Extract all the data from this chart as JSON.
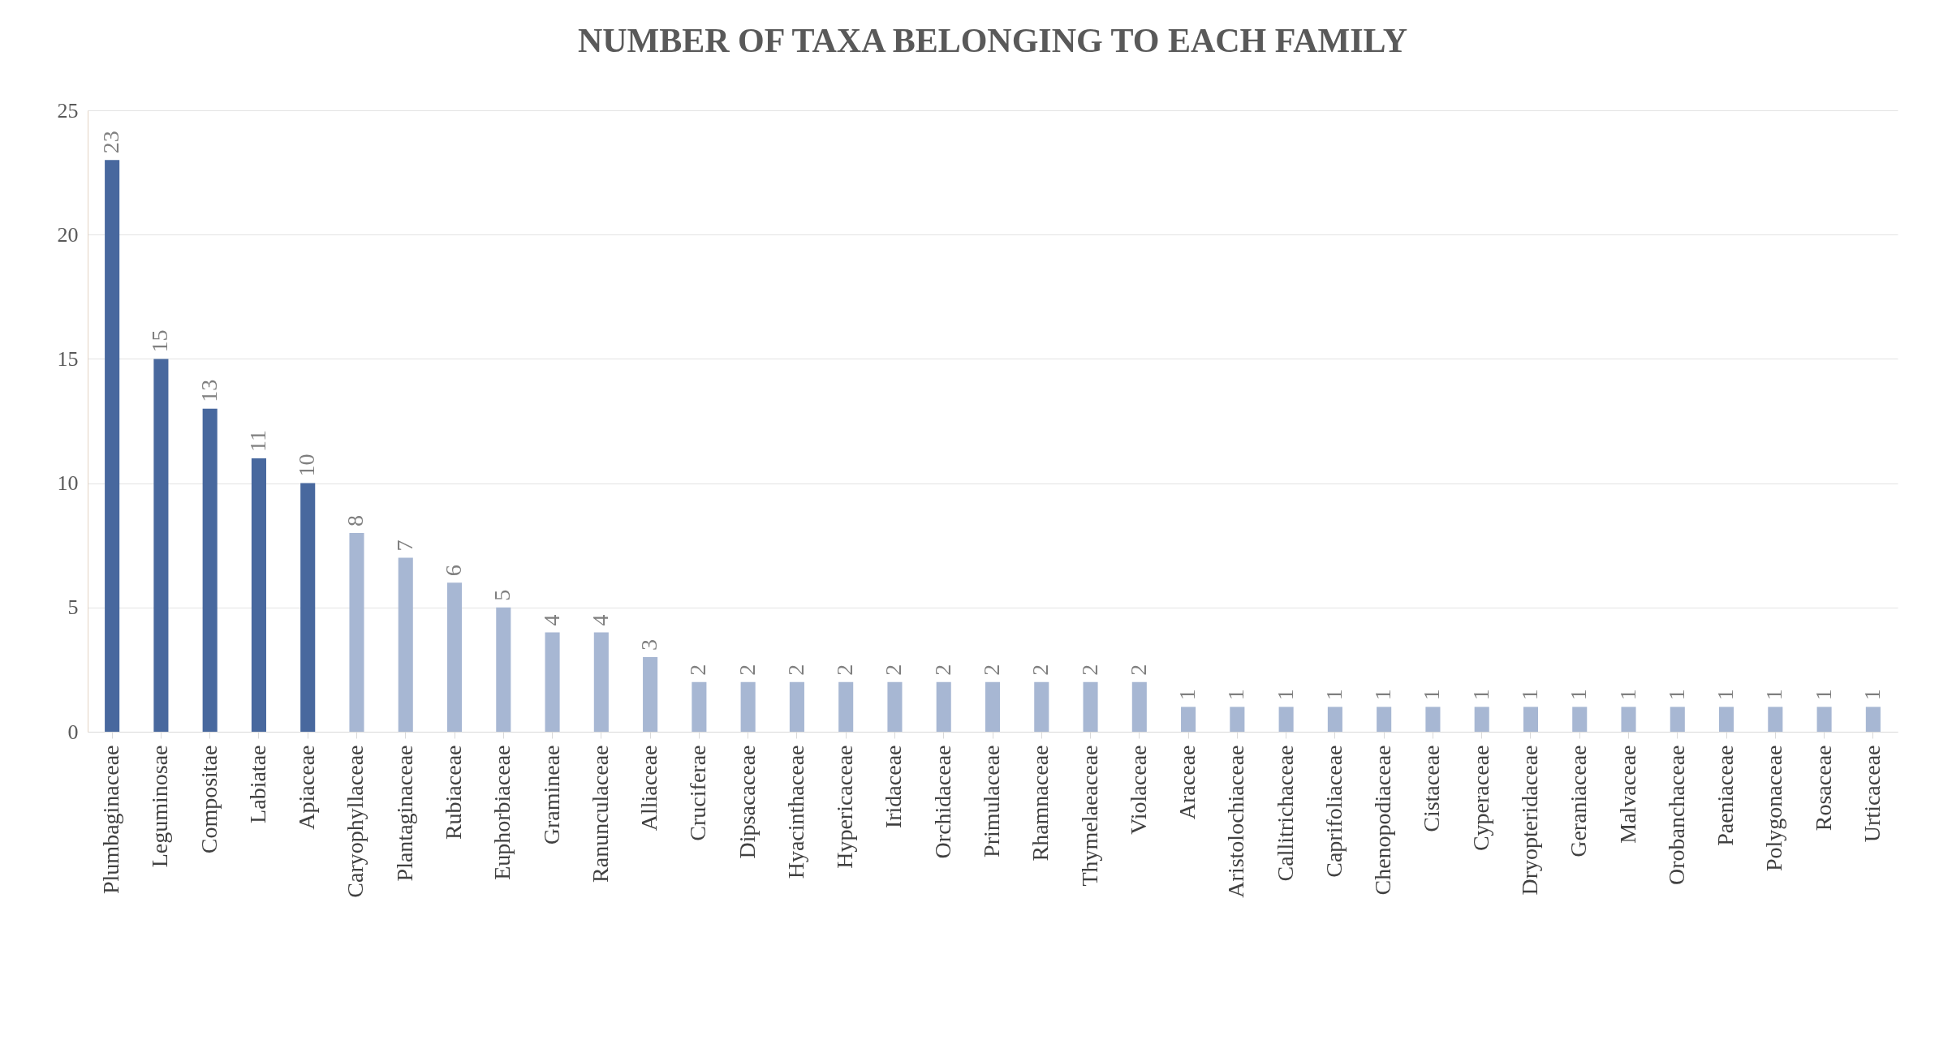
{
  "chart_data": {
    "type": "bar",
    "title": "NUMBER OF TAXA BELONGING TO EACH FAMILY",
    "categories": [
      "Plumbaginaceae",
      "Leguminosae",
      "Compositae",
      "Labiatae",
      "Apiaceae",
      "Caryophyllaceae",
      "Plantaginaceae",
      "Rubiaceae",
      "Euphorbiaceae",
      "Gramineae",
      "Ranunculaceae",
      "Alliaceae",
      "Cruciferae",
      "Dipsacaceae",
      "Hyacinthaceae",
      "Hypericaceae",
      "Iridaceae",
      "Orchidaceae",
      "Primulaceae",
      "Rhamnaceae",
      "Thymelaeaceae",
      "Violaceae",
      "Araceae",
      "Aristolochiaceae",
      "Callitrichaceae",
      "Caprifoliaceae",
      "Chenopodiaceae",
      "Cistaceae",
      "Cyperaceae",
      "Dryopteridaceae",
      "Geraniaceae",
      "Malvaceae",
      "Orobanchaceae",
      "Paeniaceae",
      "Polygonaceae",
      "Rosaceae",
      "Urticaceae"
    ],
    "values": [
      23,
      15,
      13,
      11,
      10,
      8,
      7,
      6,
      5,
      4,
      4,
      3,
      2,
      2,
      2,
      2,
      2,
      2,
      2,
      2,
      2,
      2,
      1,
      1,
      1,
      1,
      1,
      1,
      1,
      1,
      1,
      1,
      1,
      1,
      1,
      1,
      1
    ],
    "colors": [
      "#48689e",
      "#48689e",
      "#48689e",
      "#48689e",
      "#48689e",
      "#a7b7d3",
      "#a7b7d3",
      "#a7b7d3",
      "#a7b7d3",
      "#a7b7d3",
      "#a7b7d3",
      "#a7b7d3",
      "#a7b7d3",
      "#a7b7d3",
      "#a7b7d3",
      "#a7b7d3",
      "#a7b7d3",
      "#a7b7d3",
      "#a7b7d3",
      "#a7b7d3",
      "#a7b7d3",
      "#a7b7d3",
      "#a7b7d3",
      "#a7b7d3",
      "#a7b7d3",
      "#a7b7d3",
      "#a7b7d3",
      "#a7b7d3",
      "#a7b7d3",
      "#a7b7d3",
      "#a7b7d3",
      "#a7b7d3",
      "#a7b7d3",
      "#a7b7d3",
      "#a7b7d3",
      "#a7b7d3",
      "#a7b7d3"
    ],
    "ylim": [
      0,
      25
    ],
    "yticks": [
      0,
      5,
      10,
      15,
      20,
      25
    ],
    "grid": "y",
    "data_labels": true
  }
}
